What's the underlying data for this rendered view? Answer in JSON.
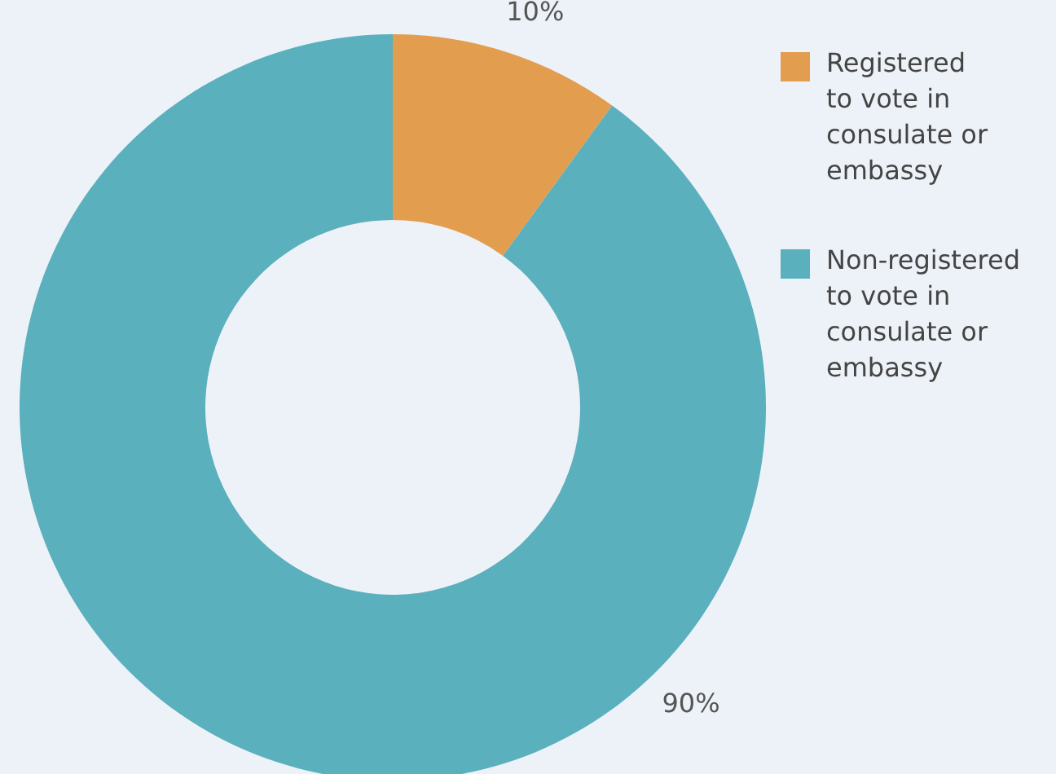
{
  "chart_data": {
    "type": "donut",
    "categories": [
      "Registered to vote in consulate or embassy",
      "Non-registered to vote in consulate or embassy"
    ],
    "values": [
      10,
      90
    ],
    "colors": [
      "#e39d4f",
      "#5ab0bd"
    ],
    "value_labels": [
      "10%",
      "90%"
    ],
    "legend": "top right"
  }
}
